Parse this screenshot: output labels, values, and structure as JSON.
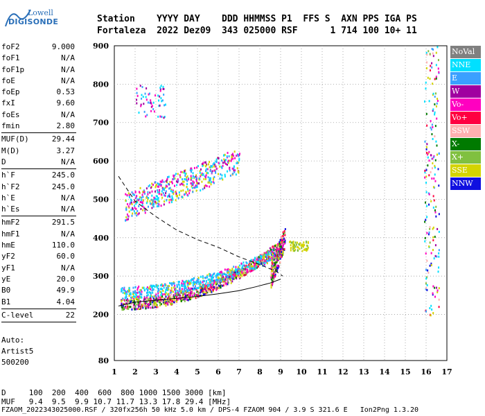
{
  "logo": {
    "line1": "Lowell",
    "line2": "DIGISONDE"
  },
  "header": {
    "row1": "Station    YYYY DAY    DDD HHMMSS P1  FFS S  AXN PPS IGA PS",
    "row2": "Fortaleza  2022 Dez09  343 025000 RSF      1 714 100 10+ 11"
  },
  "params": [
    {
      "group": [
        [
          "foF2",
          "9.000"
        ],
        [
          "foF1",
          "N/A"
        ],
        [
          "foF1p",
          "N/A"
        ],
        [
          "foE",
          "N/A"
        ],
        [
          "foEp",
          "0.53"
        ],
        [
          "fxI",
          "9.60"
        ],
        [
          "foEs",
          "N/A"
        ],
        [
          "fmin",
          "2.80"
        ]
      ]
    },
    {
      "group": [
        [
          "MUF(D)",
          "29.44"
        ],
        [
          "M(D)",
          "3.27"
        ],
        [
          "D",
          "N/A"
        ]
      ]
    },
    {
      "group": [
        [
          "h`F",
          "245.0"
        ],
        [
          "h`F2",
          "245.0"
        ],
        [
          "h`E",
          "N/A"
        ],
        [
          "h`Es",
          "N/A"
        ]
      ]
    },
    {
      "group": [
        [
          "hmF2",
          "291.5"
        ],
        [
          "hmF1",
          "N/A"
        ],
        [
          "hmE",
          "110.0"
        ],
        [
          "yF2",
          "60.0"
        ],
        [
          "yF1",
          "N/A"
        ],
        [
          "yE",
          "20.0"
        ],
        [
          "B0",
          "49.9"
        ],
        [
          "B1",
          "4.04"
        ]
      ]
    },
    {
      "group": [
        [
          "C-level",
          "22"
        ]
      ]
    }
  ],
  "auto": {
    "l1": "Auto:",
    "l2": "Artist5",
    "l3": "500200"
  },
  "legend": [
    {
      "label": "NoVal",
      "color": "#808080"
    },
    {
      "label": "NNE",
      "color": "#00e0ff"
    },
    {
      "label": "E",
      "color": "#3aa0ff"
    },
    {
      "label": "W",
      "color": "#a000a0"
    },
    {
      "label": "Vo-",
      "color": "#ff00c0"
    },
    {
      "label": "Vo+",
      "color": "#ff0040"
    },
    {
      "label": "SSW",
      "color": "#ffb0b0"
    },
    {
      "label": "X-",
      "color": "#007a00"
    },
    {
      "label": "X+",
      "color": "#80c040"
    },
    {
      "label": "SSE",
      "color": "#d4d400"
    },
    {
      "label": "NNW",
      "color": "#1010e0"
    }
  ],
  "bottom": {
    "row1": "D     100  200  400  600  800 1000 1500 3000 [km]",
    "row2": "MUF   9.4  9.5  9.9 10.7 11.7 13.3 17.8 29.4 [MHz]",
    "row3": "FZAOM_2022343025000.RSF / 320fx256h 50 kHz 5.0 km / DPS-4 FZAOM 904 / 3.9 S 321.6 E   Ion2Png 1.3.20"
  },
  "chart_data": {
    "type": "scatter",
    "x_ticks": [
      1,
      2,
      3,
      4,
      5,
      6,
      7,
      8,
      9,
      10,
      11,
      12,
      13,
      14,
      15,
      16,
      17
    ],
    "y_ticks": [
      80,
      200,
      300,
      400,
      500,
      600,
      700,
      800,
      900
    ],
    "xlim": [
      1,
      17
    ],
    "ylim": [
      80,
      900
    ],
    "grid": true,
    "trace_lower": [
      [
        1.2,
        222
      ],
      [
        2,
        232
      ],
      [
        3,
        237
      ],
      [
        4,
        242
      ],
      [
        5,
        247
      ],
      [
        6,
        254
      ],
      [
        7,
        262
      ],
      [
        7.8,
        272
      ],
      [
        8.5,
        282
      ],
      [
        9.0,
        292
      ]
    ],
    "trace_dashed": [
      [
        1.2,
        560
      ],
      [
        2,
        495
      ],
      [
        3,
        455
      ],
      [
        4,
        420
      ],
      [
        5,
        395
      ],
      [
        6,
        375
      ],
      [
        7,
        350
      ],
      [
        8,
        330
      ],
      [
        8.8,
        312
      ],
      [
        9.1,
        300
      ]
    ]
  }
}
